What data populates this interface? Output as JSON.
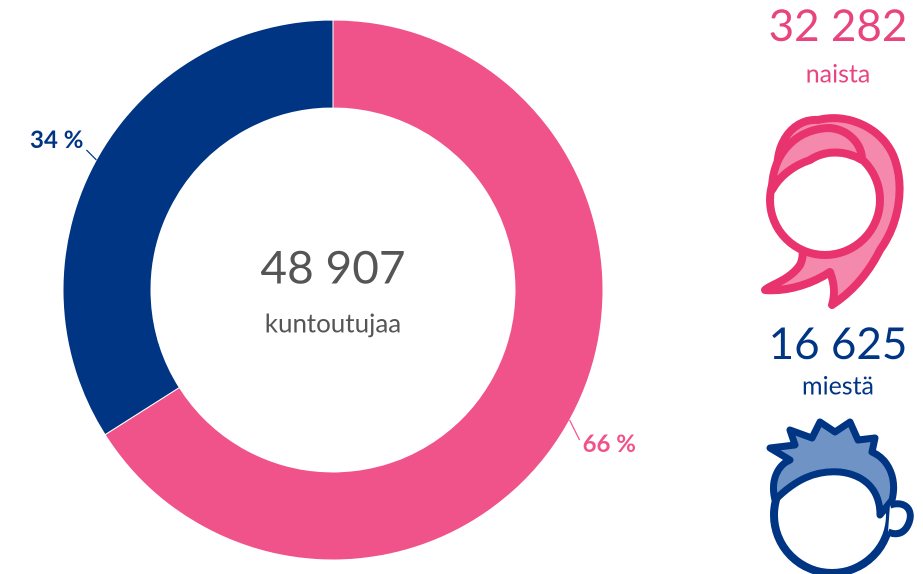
{
  "chart_data": {
    "type": "donut",
    "categories": [
      "naista",
      "miestä"
    ],
    "values": [
      66,
      34
    ],
    "value_labels": [
      "66 %",
      "34 %"
    ],
    "colors": [
      "#f0538a",
      "#003584"
    ],
    "counts": [
      {
        "value": 32282,
        "label": "32 282"
      },
      {
        "value": 16625,
        "label": "16 625"
      }
    ],
    "total": {
      "value": 48907,
      "label": "48 907"
    },
    "center_label": "kuntoutujaa"
  }
}
